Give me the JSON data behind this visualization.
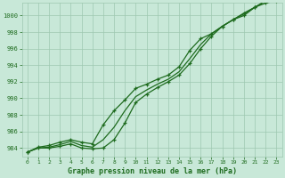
{
  "hours": [
    0,
    1,
    2,
    3,
    4,
    5,
    6,
    7,
    8,
    9,
    10,
    11,
    12,
    13,
    14,
    15,
    16,
    17,
    18,
    19,
    20,
    21,
    22,
    23
  ],
  "line_upper": [
    983.5,
    984.1,
    984.3,
    984.7,
    985.0,
    984.7,
    984.5,
    986.8,
    988.5,
    989.8,
    991.2,
    991.7,
    992.3,
    992.8,
    993.8,
    995.8,
    997.2,
    997.8,
    998.7,
    999.5,
    1000.0,
    1001.0,
    1001.8,
    1002.3
  ],
  "line_lower": [
    983.5,
    984.0,
    984.0,
    984.2,
    984.5,
    984.0,
    983.9,
    984.0,
    985.0,
    987.0,
    989.5,
    990.5,
    991.3,
    992.0,
    992.8,
    994.2,
    996.0,
    997.5,
    998.7,
    999.5,
    1000.3,
    1001.0,
    1001.5,
    1001.8
  ],
  "line_mid": [
    983.5,
    984.0,
    984.1,
    984.4,
    984.8,
    984.3,
    984.1,
    985.0,
    986.5,
    988.5,
    990.2,
    991.0,
    991.7,
    992.3,
    993.2,
    994.8,
    996.5,
    997.8,
    998.7,
    999.5,
    1000.2,
    1001.0,
    1001.7,
    1002.1
  ],
  "ylim_min": 983.0,
  "ylim_max": 1001.5,
  "yticks": [
    984,
    986,
    988,
    990,
    992,
    994,
    996,
    998,
    1000
  ],
  "line_color": "#1e6b1e",
  "bg_color": "#c8e8d8",
  "grid_color": "#9ec8b0",
  "tick_color": "#1e6b1e",
  "xlabel": "Graphe pression niveau de la mer (hPa)",
  "xlabel_color": "#1e6b1e",
  "markersize": 3.5,
  "linewidth": 0.9
}
